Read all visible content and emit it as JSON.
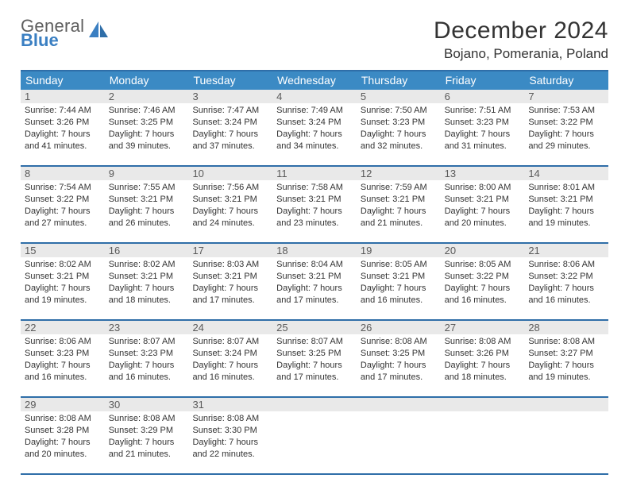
{
  "logo": {
    "line1": "General",
    "line2": "Blue"
  },
  "title": "December 2024",
  "location": "Bojano, Pomerania, Poland",
  "colors": {
    "header_bg": "#3b8ac4",
    "header_text": "#ffffff",
    "rule": "#2f6ea8",
    "daynum_bg": "#e9e9e9",
    "body_text": "#333333",
    "logo_gray": "#5e5e5e",
    "logo_blue": "#3a7fc2"
  },
  "day_names": [
    "Sunday",
    "Monday",
    "Tuesday",
    "Wednesday",
    "Thursday",
    "Friday",
    "Saturday"
  ],
  "weeks": [
    [
      {
        "n": "1",
        "sr": "7:44 AM",
        "ss": "3:26 PM",
        "dl": "7 hours and 41 minutes."
      },
      {
        "n": "2",
        "sr": "7:46 AM",
        "ss": "3:25 PM",
        "dl": "7 hours and 39 minutes."
      },
      {
        "n": "3",
        "sr": "7:47 AM",
        "ss": "3:24 PM",
        "dl": "7 hours and 37 minutes."
      },
      {
        "n": "4",
        "sr": "7:49 AM",
        "ss": "3:24 PM",
        "dl": "7 hours and 34 minutes."
      },
      {
        "n": "5",
        "sr": "7:50 AM",
        "ss": "3:23 PM",
        "dl": "7 hours and 32 minutes."
      },
      {
        "n": "6",
        "sr": "7:51 AM",
        "ss": "3:23 PM",
        "dl": "7 hours and 31 minutes."
      },
      {
        "n": "7",
        "sr": "7:53 AM",
        "ss": "3:22 PM",
        "dl": "7 hours and 29 minutes."
      }
    ],
    [
      {
        "n": "8",
        "sr": "7:54 AM",
        "ss": "3:22 PM",
        "dl": "7 hours and 27 minutes."
      },
      {
        "n": "9",
        "sr": "7:55 AM",
        "ss": "3:21 PM",
        "dl": "7 hours and 26 minutes."
      },
      {
        "n": "10",
        "sr": "7:56 AM",
        "ss": "3:21 PM",
        "dl": "7 hours and 24 minutes."
      },
      {
        "n": "11",
        "sr": "7:58 AM",
        "ss": "3:21 PM",
        "dl": "7 hours and 23 minutes."
      },
      {
        "n": "12",
        "sr": "7:59 AM",
        "ss": "3:21 PM",
        "dl": "7 hours and 21 minutes."
      },
      {
        "n": "13",
        "sr": "8:00 AM",
        "ss": "3:21 PM",
        "dl": "7 hours and 20 minutes."
      },
      {
        "n": "14",
        "sr": "8:01 AM",
        "ss": "3:21 PM",
        "dl": "7 hours and 19 minutes."
      }
    ],
    [
      {
        "n": "15",
        "sr": "8:02 AM",
        "ss": "3:21 PM",
        "dl": "7 hours and 19 minutes."
      },
      {
        "n": "16",
        "sr": "8:02 AM",
        "ss": "3:21 PM",
        "dl": "7 hours and 18 minutes."
      },
      {
        "n": "17",
        "sr": "8:03 AM",
        "ss": "3:21 PM",
        "dl": "7 hours and 17 minutes."
      },
      {
        "n": "18",
        "sr": "8:04 AM",
        "ss": "3:21 PM",
        "dl": "7 hours and 17 minutes."
      },
      {
        "n": "19",
        "sr": "8:05 AM",
        "ss": "3:21 PM",
        "dl": "7 hours and 16 minutes."
      },
      {
        "n": "20",
        "sr": "8:05 AM",
        "ss": "3:22 PM",
        "dl": "7 hours and 16 minutes."
      },
      {
        "n": "21",
        "sr": "8:06 AM",
        "ss": "3:22 PM",
        "dl": "7 hours and 16 minutes."
      }
    ],
    [
      {
        "n": "22",
        "sr": "8:06 AM",
        "ss": "3:23 PM",
        "dl": "7 hours and 16 minutes."
      },
      {
        "n": "23",
        "sr": "8:07 AM",
        "ss": "3:23 PM",
        "dl": "7 hours and 16 minutes."
      },
      {
        "n": "24",
        "sr": "8:07 AM",
        "ss": "3:24 PM",
        "dl": "7 hours and 16 minutes."
      },
      {
        "n": "25",
        "sr": "8:07 AM",
        "ss": "3:25 PM",
        "dl": "7 hours and 17 minutes."
      },
      {
        "n": "26",
        "sr": "8:08 AM",
        "ss": "3:25 PM",
        "dl": "7 hours and 17 minutes."
      },
      {
        "n": "27",
        "sr": "8:08 AM",
        "ss": "3:26 PM",
        "dl": "7 hours and 18 minutes."
      },
      {
        "n": "28",
        "sr": "8:08 AM",
        "ss": "3:27 PM",
        "dl": "7 hours and 19 minutes."
      }
    ],
    [
      {
        "n": "29",
        "sr": "8:08 AM",
        "ss": "3:28 PM",
        "dl": "7 hours and 20 minutes."
      },
      {
        "n": "30",
        "sr": "8:08 AM",
        "ss": "3:29 PM",
        "dl": "7 hours and 21 minutes."
      },
      {
        "n": "31",
        "sr": "8:08 AM",
        "ss": "3:30 PM",
        "dl": "7 hours and 22 minutes."
      },
      null,
      null,
      null,
      null
    ]
  ],
  "labels": {
    "sunrise": "Sunrise: ",
    "sunset": "Sunset: ",
    "daylight": "Daylight: "
  }
}
